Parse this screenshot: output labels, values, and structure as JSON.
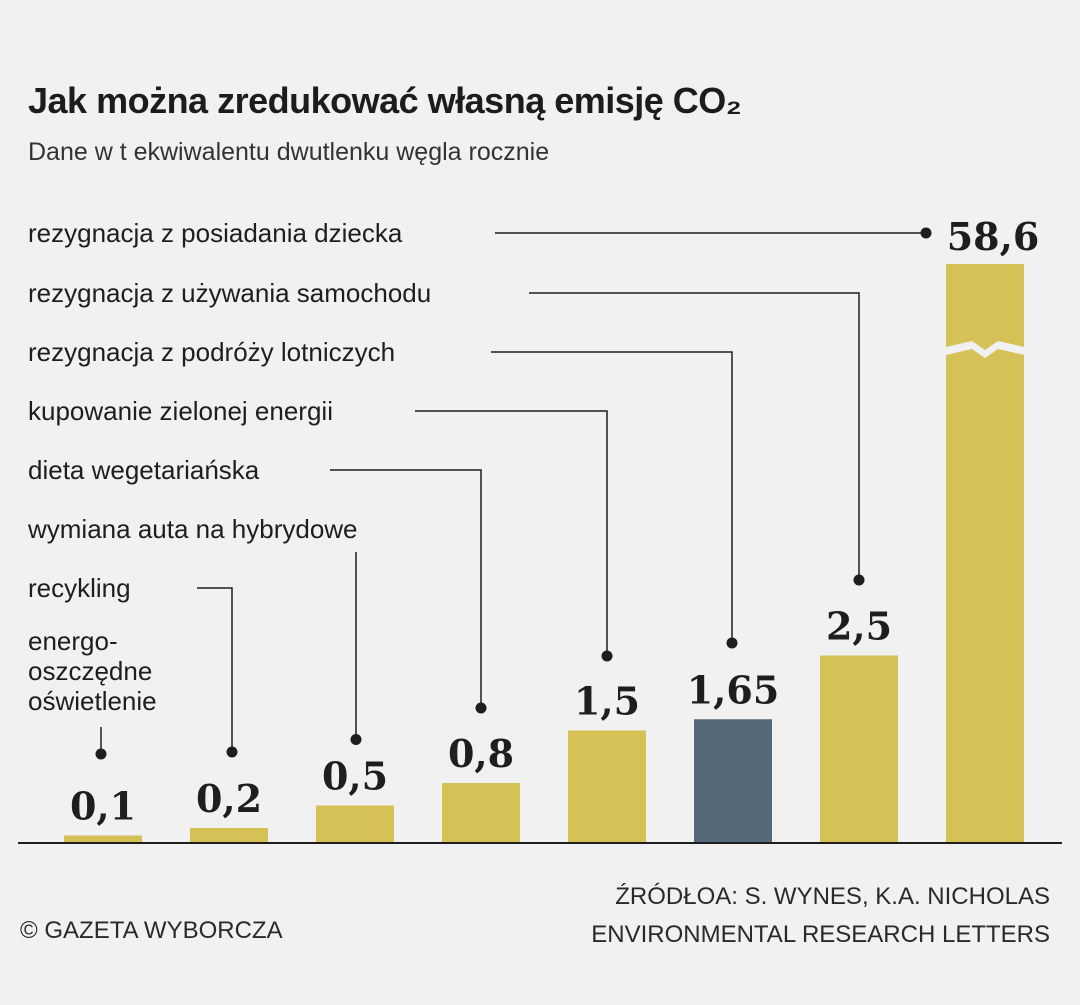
{
  "title": "Jak można zredukować własną emisję CO₂",
  "subtitle": "Dane w t ekwiwalentu dwutlenku węgla rocznie",
  "chart_data": {
    "type": "bar",
    "categories": [
      "energo-oszczędne oświetlenie",
      "recykling",
      "wymiana auta na hybrydowe",
      "dieta wegetariańska",
      "kupowanie zielonej energii",
      "rezygnacja z podróży lotniczych",
      "rezygnacja z używania samochodu",
      "rezygnacja z posiadania dziecka"
    ],
    "label_lines": [
      [
        "energo-",
        "oszczędne",
        "oświetlenie"
      ],
      [
        "recykling"
      ],
      [
        "wymiana auta na hybrydowe"
      ],
      [
        "dieta wegetariańska"
      ],
      [
        "kupowanie zielonej energii"
      ],
      [
        "rezygnacja z podróży lotniczych"
      ],
      [
        "rezygnacja z używania samochodu"
      ],
      [
        "rezygnacja z posiadania dziecka"
      ]
    ],
    "values": [
      0.1,
      0.2,
      0.5,
      0.8,
      1.5,
      1.65,
      2.5,
      58.6
    ],
    "value_labels": [
      "0,1",
      "0,2",
      "0,5",
      "0,8",
      "1,5",
      "1,65",
      "2,5",
      "58,6"
    ],
    "highlight_index": 5,
    "broken_bar_index": 7,
    "colors": {
      "bar": "#d5c155",
      "highlight": "#56697a",
      "line": "#1e1e1e"
    }
  },
  "footer": {
    "credit": "© GAZETA WYBORCZA",
    "source_line1": "ŹRÓDŁOA: S. WYNES, K.A. NICHOLAS",
    "source_line2": "ENVIRONMENTAL RESEARCH LETTERS"
  }
}
